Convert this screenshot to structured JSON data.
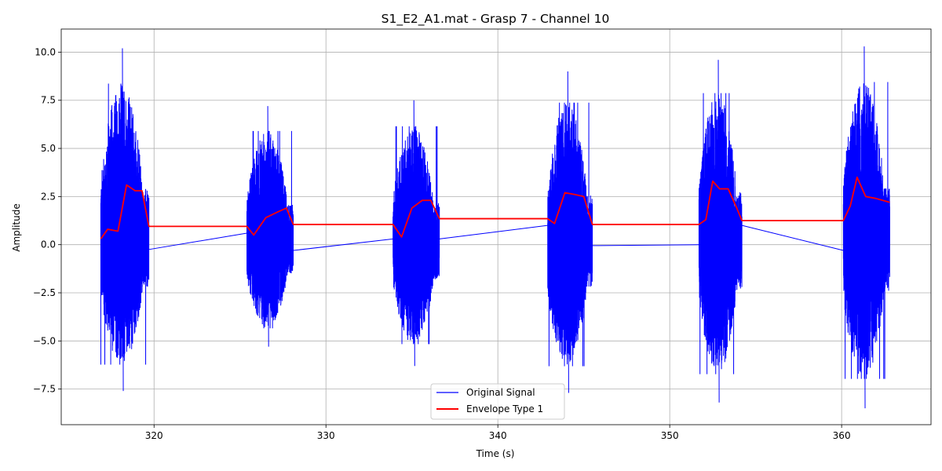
{
  "chart_data": {
    "type": "line",
    "title": "S1_E2_A1.mat - Grasp 7 - Channel 10",
    "xlabel": "Time (s)",
    "ylabel": "Amplitude",
    "xlim": [
      314.6,
      365.2
    ],
    "ylim": [
      -9.35,
      11.2
    ],
    "xticks": [
      320,
      330,
      340,
      350,
      360
    ],
    "yticks": [
      -7.5,
      -5.0,
      -2.5,
      0.0,
      2.5,
      5.0,
      7.5,
      10.0
    ],
    "xtick_labels": [
      "320",
      "330",
      "340",
      "350",
      "360"
    ],
    "ytick_labels": [
      "−7.5",
      "−5.0",
      "−2.5",
      "0.0",
      "2.5",
      "5.0",
      "7.5",
      "10.0"
    ],
    "grid": true,
    "legend_position": "bottom-center",
    "series": [
      {
        "name": "Original Signal",
        "color": "#0000ff",
        "style": "oscillating bursts joined by straight segments",
        "bursts": [
          {
            "start": 316.9,
            "end": 319.7,
            "max": 10.2,
            "min": -7.6
          },
          {
            "start": 325.4,
            "end": 328.1,
            "max": 7.2,
            "min": -5.3
          },
          {
            "start": 333.9,
            "end": 336.6,
            "max": 7.5,
            "min": -6.3
          },
          {
            "start": 342.9,
            "end": 345.5,
            "max": 9.0,
            "min": -7.7
          },
          {
            "start": 351.7,
            "end": 354.2,
            "max": 9.6,
            "min": -8.2
          },
          {
            "start": 360.1,
            "end": 362.8,
            "max": 10.3,
            "min": -8.5
          }
        ],
        "connectors": [
          [
            [
              319.7,
              -0.25
            ],
            [
              325.4,
              0.6
            ]
          ],
          [
            [
              328.1,
              -0.3
            ],
            [
              333.9,
              0.3
            ]
          ],
          [
            [
              336.6,
              0.3
            ],
            [
              342.9,
              1.0
            ]
          ],
          [
            [
              345.5,
              -0.05
            ],
            [
              351.7,
              0.0
            ]
          ],
          [
            [
              354.2,
              1.0
            ],
            [
              360.1,
              -0.3
            ]
          ]
        ]
      },
      {
        "name": "Envelope Type 1",
        "color": "#ff0000",
        "x": [
          316.9,
          317.3,
          317.9,
          318.4,
          318.9,
          319.3,
          319.7,
          325.4,
          325.8,
          326.5,
          327.2,
          327.7,
          328.1,
          333.9,
          334.4,
          335.0,
          335.6,
          336.1,
          336.6,
          342.9,
          343.3,
          343.9,
          344.5,
          345.0,
          345.5,
          351.7,
          352.1,
          352.5,
          352.9,
          353.4,
          353.9,
          354.2,
          360.1,
          360.5,
          360.9,
          361.4,
          362.0,
          362.8
        ],
        "y": [
          0.3,
          0.8,
          0.7,
          3.1,
          2.8,
          2.8,
          0.95,
          0.95,
          0.5,
          1.4,
          1.7,
          1.9,
          1.05,
          1.05,
          0.4,
          1.9,
          2.3,
          2.3,
          1.35,
          1.35,
          1.1,
          2.7,
          2.6,
          2.5,
          1.05,
          1.05,
          1.3,
          3.3,
          2.9,
          2.9,
          1.9,
          1.25,
          1.25,
          2.0,
          3.5,
          2.5,
          2.4,
          2.2
        ]
      }
    ]
  }
}
